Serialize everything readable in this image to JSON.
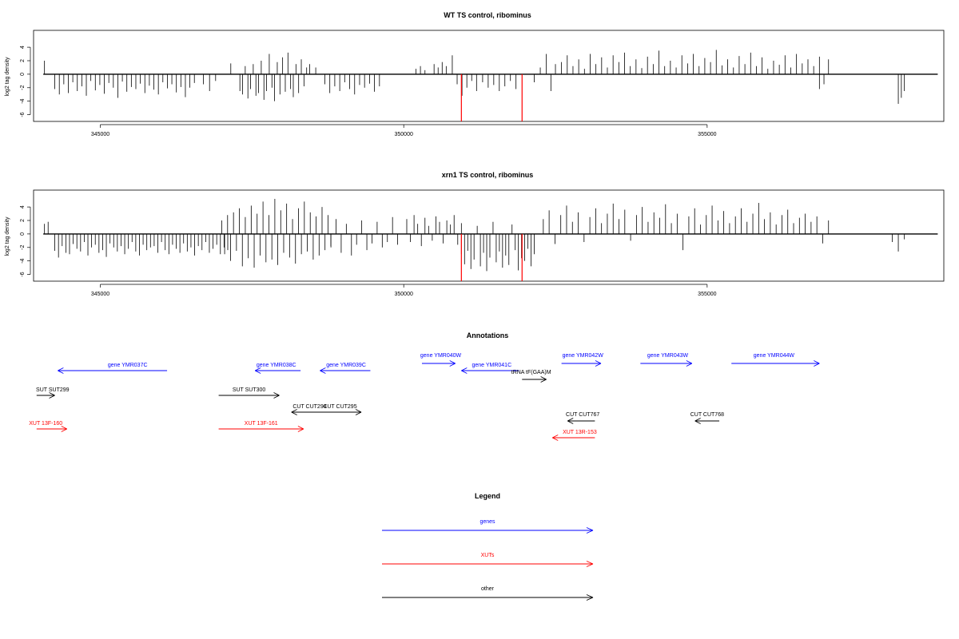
{
  "colors": {
    "gene": "#0000ff",
    "xut": "#ff0000",
    "other": "#000000",
    "peak": "#ff0000",
    "axis": "#000000"
  },
  "chart_data": [
    {
      "type": "bar",
      "title": "WT TS control, ribominus",
      "ylabel": "log2 tag density",
      "xlim": [
        343900,
        358900
      ],
      "ylim": [
        -7,
        6.5
      ],
      "xticks": [
        345000,
        350000,
        355000
      ],
      "yticks": [
        -6,
        -4,
        -2,
        0,
        2,
        4
      ],
      "series": [
        {
          "segments": [
            {
              "start": 344080,
              "end": 344120,
              "values": [
                2.0
              ]
            },
            {
              "start": 344250,
              "end": 346550,
              "values": [
                -2.2,
                -3.0,
                -1.5,
                -2.8,
                -1.2,
                -2.5,
                -1.8,
                -3.2,
                -1.0,
                -2.4,
                -1.6,
                -2.9,
                -1.3,
                -2.0,
                -3.5,
                -1.1,
                -2.6,
                -1.9,
                -2.2,
                -1.4,
                -2.8,
                -1.7,
                -2.3,
                -3.0,
                -1.2,
                -2.1,
                -1.5,
                -2.7,
                -1.9,
                -3.4,
                -2.0,
                -1.3
              ]
            },
            {
              "start": 346700,
              "end": 346900,
              "values": [
                -1.5,
                -2.5,
                -1.0
              ]
            },
            {
              "start": 347150,
              "end": 347200,
              "values": [
                1.6
              ]
            },
            {
              "start": 347300,
              "end": 348400,
              "values": [
                -2.5,
                -3.0,
                1.2,
                -3.6,
                -2.2,
                1.5,
                -3.2,
                -2.8,
                2.0,
                -3.8,
                -2.5,
                3.0,
                -2.0,
                -4.0,
                1.8,
                -3.0,
                2.5,
                -2.6,
                3.2,
                -2.2,
                -3.4,
                1.5,
                -2.8,
                2.2,
                -1.8,
                1.0
              ]
            },
            {
              "start": 348450,
              "end": 348550,
              "values": [
                1.5,
                1.0
              ]
            },
            {
              "start": 348700,
              "end": 349600,
              "values": [
                -1.5,
                -2.8,
                -1.8,
                -2.5,
                -1.2,
                -2.2,
                -3.0,
                -1.6,
                -2.0,
                -1.4,
                -2.6,
                -1.8
              ]
            },
            {
              "start": 350200,
              "end": 350350,
              "values": [
                0.8,
                1.2,
                0.6
              ]
            },
            {
              "start": 350500,
              "end": 350700,
              "values": [
                1.5,
                1.0,
                1.8,
                1.2
              ]
            },
            {
              "start": 350800,
              "end": 351200,
              "values": [
                2.8,
                -1.5,
                -3.2,
                -2.0,
                -1.0,
                -2.5
              ]
            },
            {
              "start": 351300,
              "end": 351850,
              "values": [
                -1.2,
                -2.0,
                -1.6,
                -2.5,
                -1.8,
                -1.0,
                -2.2
              ]
            },
            {
              "start": 352150,
              "end": 352250,
              "values": [
                -1.2,
                1.0
              ]
            },
            {
              "start": 352350,
              "end": 352500,
              "values": [
                3.0,
                -2.5,
                1.5
              ]
            },
            {
              "start": 352600,
              "end": 356850,
              "values": [
                1.8,
                2.8,
                1.2,
                2.2,
                0.8,
                3.0,
                1.5,
                2.5,
                1.0,
                2.8,
                1.8,
                3.2,
                1.2,
                2.2,
                0.9,
                2.6,
                1.5,
                3.5,
                1.2,
                2.0,
                1.0,
                2.8,
                1.6,
                3.0,
                1.2,
                2.4,
                1.8,
                3.6,
                1.3,
                2.2,
                1.0,
                2.7,
                1.5,
                3.2,
                1.2,
                2.5,
                0.8,
                2.0,
                1.4,
                2.8,
                1.0,
                3.0,
                1.6,
                2.2,
                1.2,
                2.6
              ]
            },
            {
              "start": 356850,
              "end": 357000,
              "values": [
                -2.2,
                -1.5,
                2.2
              ]
            },
            {
              "start": 358150,
              "end": 358250,
              "values": [
                -4.4,
                -3.5,
                -2.5
              ]
            }
          ]
        }
      ],
      "peaks": [
        {
          "x": 350950,
          "y": -7
        },
        {
          "x": 351950,
          "y": -7
        }
      ]
    },
    {
      "type": "bar",
      "title": "xrn1 TS control, ribominus",
      "ylabel": "log2 tag density",
      "xlim": [
        343900,
        358900
      ],
      "ylim": [
        -7,
        6.5
      ],
      "xticks": [
        345000,
        350000,
        355000
      ],
      "yticks": [
        -6,
        -4,
        -2,
        0,
        2,
        4
      ],
      "series": [
        {
          "segments": [
            {
              "start": 344080,
              "end": 344140,
              "values": [
                1.5,
                1.8
              ]
            },
            {
              "start": 344250,
              "end": 347100,
              "values": [
                -2.5,
                -3.5,
                -1.8,
                -2.8,
                -3.0,
                -1.5,
                -2.2,
                -2.6,
                -1.2,
                -3.2,
                -2.0,
                -1.6,
                -2.8,
                -2.4,
                -3.4,
                -1.4,
                -2.0,
                -2.6,
                -1.8,
                -3.0,
                -2.2,
                -1.2,
                -2.6,
                -3.2,
                -1.6,
                -2.4,
                -2.0,
                -1.8,
                -2.8,
                -1.2,
                -2.4,
                -3.0,
                -1.6,
                -2.2,
                -2.8,
                -1.4,
                -2.6,
                -2.0,
                -3.2,
                -1.8,
                -2.4,
                -1.2,
                -2.8,
                -2.2,
                -1.6,
                -3.0,
                -2.0,
                -2.4
              ]
            },
            {
              "start": 347000,
              "end": 348800,
              "values": [
                2.0,
                -3.0,
                2.8,
                -4.0,
                3.2,
                -2.5,
                3.8,
                -4.8,
                2.5,
                -3.6,
                4.2,
                -5.0,
                3.0,
                -3.2,
                4.8,
                -4.2,
                2.8,
                -3.8,
                5.2,
                -4.6,
                3.5,
                -2.8,
                4.5,
                -3.5,
                2.2,
                -4.4,
                3.8,
                -3.0,
                4.8,
                -2.6,
                3.2,
                -3.8,
                2.6,
                -3.2,
                4.0,
                -2.4,
                2.8,
                -2.0
              ]
            },
            {
              "start": 348800,
              "end": 349900,
              "values": [
                -1.8,
                2.2,
                -2.8,
                1.5,
                -3.2,
                -1.6,
                2.0,
                -2.4,
                -1.4,
                1.8,
                -2.0,
                -1.2,
                2.5,
                -1.6
              ]
            },
            {
              "start": 350050,
              "end": 350950,
              "values": [
                2.2,
                -1.2,
                2.8,
                1.5,
                -1.8,
                2.4,
                1.2,
                -1.0,
                2.6,
                1.8,
                -1.4,
                2.0,
                1.4,
                2.8,
                -1.6,
                1.6
              ]
            },
            {
              "start": 350950,
              "end": 352150,
              "values": [
                -3.0,
                -4.5,
                -2.5,
                -5.2,
                -3.8,
                1.2,
                -4.8,
                -2.8,
                -5.5,
                -3.5,
                1.8,
                -4.2,
                -2.6,
                -5.0,
                -3.2,
                -4.6,
                1.4,
                -2.4,
                -5.4,
                -3.6,
                -4.0,
                -2.2,
                -4.8,
                -3.0
              ]
            },
            {
              "start": 352300,
              "end": 357000,
              "values": [
                2.2,
                3.5,
                -1.5,
                2.8,
                4.2,
                1.8,
                3.2,
                -1.2,
                2.5,
                3.8,
                1.6,
                3.0,
                4.5,
                2.2,
                3.6,
                -1.0,
                2.8,
                4.0,
                1.8,
                3.2,
                2.4,
                4.4,
                1.6,
                3.0,
                -2.4,
                2.6,
                3.8,
                1.4,
                2.8,
                4.2,
                2.0,
                3.4,
                1.6,
                2.6,
                3.8,
                1.8,
                3.0,
                4.6,
                2.2,
                3.2,
                1.4,
                2.8,
                3.6,
                1.6,
                2.4,
                3.0,
                1.8,
                2.6,
                -1.4,
                2.0
              ]
            },
            {
              "start": 358050,
              "end": 358250,
              "values": [
                -1.2,
                -2.6,
                -0.8
              ]
            }
          ]
        }
      ],
      "peaks": [
        {
          "x": 350950,
          "y": -7
        },
        {
          "x": 351950,
          "y": -7
        }
      ]
    }
  ],
  "annotations": {
    "title": "Annotations",
    "items": [
      {
        "label": "gene YMR037C",
        "kind": "gene",
        "start": 346100,
        "end": 344300,
        "label_x": 345450,
        "row": 1
      },
      {
        "label": "gene YMR038C",
        "kind": "gene",
        "start": 348300,
        "end": 347550,
        "label_x": 347900,
        "row": 1
      },
      {
        "label": "gene YMR039C",
        "kind": "gene",
        "start": 349450,
        "end": 348620,
        "label_x": 349050,
        "row": 1
      },
      {
        "label": "gene YMR040W",
        "kind": "gene",
        "start": 350300,
        "end": 350850,
        "label_x": 350610,
        "row": 0
      },
      {
        "label": "gene YMR041C",
        "kind": "gene",
        "start": 351900,
        "end": 350950,
        "label_x": 351450,
        "row": 1
      },
      {
        "label": "gene YMR042W",
        "kind": "gene",
        "start": 352600,
        "end": 353250,
        "label_x": 352950,
        "row": 0
      },
      {
        "label": "gene YMR043W",
        "kind": "gene",
        "start": 353900,
        "end": 354750,
        "label_x": 354350,
        "row": 0
      },
      {
        "label": "gene YMR044W",
        "kind": "gene",
        "start": 355400,
        "end": 356850,
        "label_x": 356100,
        "row": 0
      },
      {
        "label": "tRNA tF(GAA)M",
        "kind": "other",
        "start": 351950,
        "end": 352350,
        "label_x": 352100,
        "row": 2
      },
      {
        "label": "SUT SUT299",
        "kind": "other",
        "start": 343950,
        "end": 344250,
        "label_x": 343940,
        "row": 3
      },
      {
        "label": "SUT SUT300",
        "kind": "other",
        "start": 346950,
        "end": 347950,
        "label_x": 347450,
        "row": 3
      },
      {
        "label": "CUT CUT294",
        "kind": "other",
        "start": 349050,
        "end": 348150,
        "label_x": 348450,
        "row": 4
      },
      {
        "label": "CUT CUT295",
        "kind": "other",
        "start": 348350,
        "end": 349300,
        "label_x": 348950,
        "row": 4
      },
      {
        "label": "CUT CUT767",
        "kind": "other",
        "start": 353150,
        "end": 352700,
        "label_x": 352950,
        "row": 5
      },
      {
        "label": "CUT CUT768",
        "kind": "other",
        "start": 355200,
        "end": 354800,
        "label_x": 355000,
        "row": 5
      },
      {
        "label": "XUT 13F-160",
        "kind": "xut",
        "start": 343950,
        "end": 344450,
        "label_x": 344100,
        "row": 6
      },
      {
        "label": "XUT 13F-161",
        "kind": "xut",
        "start": 346950,
        "end": 348350,
        "label_x": 347650,
        "row": 6
      },
      {
        "label": "XUT 13R-153",
        "kind": "xut",
        "start": 353150,
        "end": 352450,
        "label_x": 352900,
        "row": 7
      }
    ]
  },
  "legend": {
    "title": "Legend",
    "items": [
      {
        "label": "genes",
        "kind": "gene"
      },
      {
        "label": "XUTs",
        "kind": "xut"
      },
      {
        "label": "other",
        "kind": "other"
      }
    ]
  }
}
